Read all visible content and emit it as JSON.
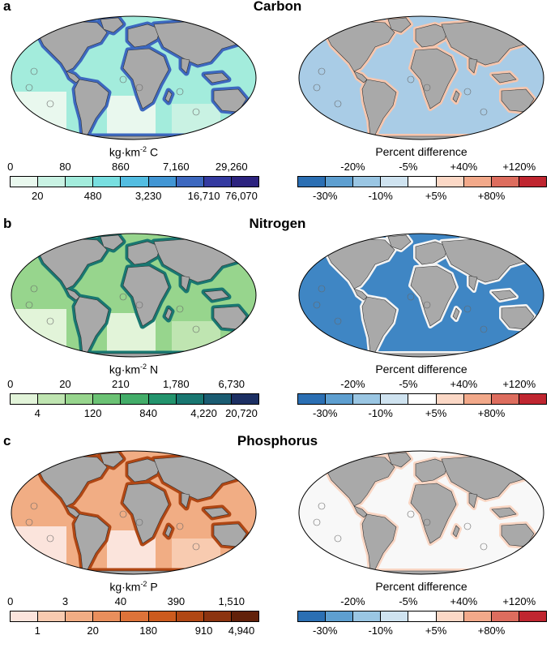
{
  "panels": [
    {
      "letter": "a",
      "title": "Carbon",
      "unit_prefix": "kg·km",
      "unit_exp": "-2",
      "unit_suffix": " C",
      "colors": [
        "#e9f8ee",
        "#c9f2e3",
        "#a3ecdc",
        "#78dfe0",
        "#53bde1",
        "#4296d4",
        "#3d68bf",
        "#343aa0",
        "#2c237f"
      ],
      "top_ticks": [
        "0",
        "80",
        "860",
        "7,160",
        "29,260"
      ],
      "bottom_ticks": [
        "20",
        "480",
        "3,230",
        "16,710",
        "76,070"
      ]
    },
    {
      "letter": "b",
      "title": "Nitrogen",
      "unit_prefix": "kg·km",
      "unit_exp": "-2",
      "unit_suffix": " N",
      "colors": [
        "#e2f4d9",
        "#bfe5b1",
        "#97d58d",
        "#6bc274",
        "#43ad69",
        "#23946d",
        "#197771",
        "#1b5c72",
        "#1c2f63"
      ],
      "top_ticks": [
        "0",
        "20",
        "210",
        "1,780",
        "6,730"
      ],
      "bottom_ticks": [
        "4",
        "120",
        "840",
        "4,220",
        "20,720"
      ]
    },
    {
      "letter": "c",
      "title": "Phosphorus",
      "unit_prefix": "kg·km",
      "unit_exp": "-2",
      "unit_suffix": " P",
      "colors": [
        "#fbe4dc",
        "#f8cbb0",
        "#f1ad84",
        "#e98f5c",
        "#dd7339",
        "#cc5b1e",
        "#b04714",
        "#8c3410",
        "#62210a"
      ],
      "top_ticks": [
        "0",
        "3",
        "40",
        "390",
        "1,510"
      ],
      "bottom_ticks": [
        "1",
        "20",
        "180",
        "910",
        "4,940"
      ]
    }
  ],
  "diff_legend": {
    "title": "Percent difference",
    "colors": [
      "#2b6fb3",
      "#5e9fd0",
      "#9ac6e3",
      "#cfe3f0",
      "#ffffff",
      "#fbd8c6",
      "#f2a98a",
      "#dd6d5e",
      "#c02630"
    ],
    "top_ticks": [
      "-20%",
      "-5%",
      "+40%",
      "+120%"
    ],
    "bottom_ticks": [
      "-30%",
      "-10%",
      "+5%",
      "+80%"
    ]
  },
  "diff_fills": [
    {
      "ocean": "#a9cce6",
      "coast": "#f6c6ae"
    },
    {
      "ocean": "#3f86c4",
      "coast": "#f3f3f3"
    },
    {
      "ocean": "#f8f8f8",
      "coast": "#f9d6c4"
    }
  ]
}
